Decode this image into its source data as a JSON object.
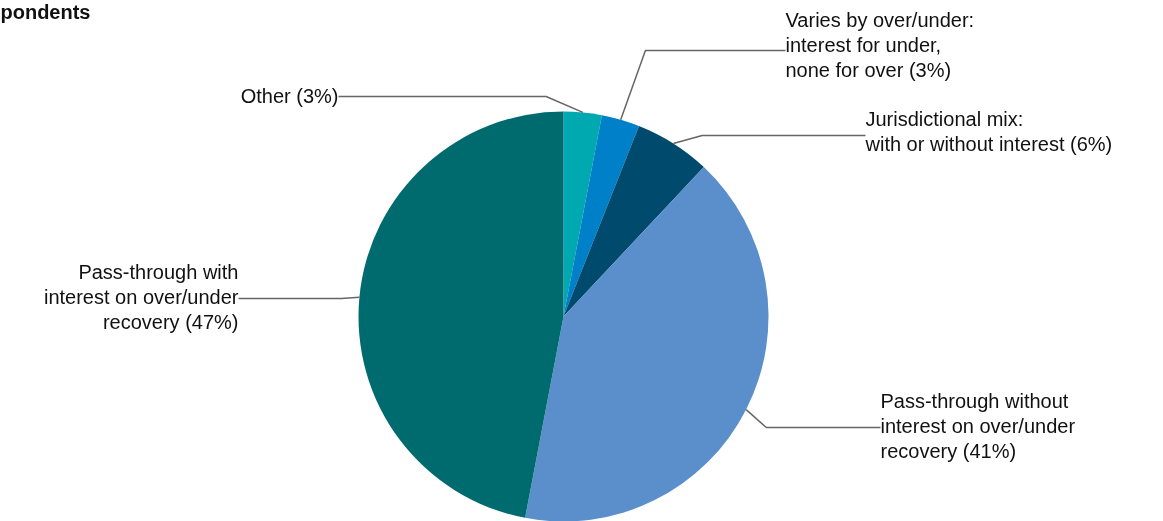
{
  "chart_data": {
    "type": "pie",
    "title": "pondents",
    "categories": [
      "Other (3%)",
      "Varies by over/under:\ninterest for under,\nnone for over (3%)",
      "Jurisdictional mix:\nwith or without interest (6%)",
      "Pass-through without\ninterest on over/under\nrecovery (41%)",
      "Pass-through with\ninterest on over/under\nrecovery (47%)"
    ],
    "values": [
      3,
      3,
      6,
      41,
      47
    ],
    "colors": [
      "#00a9b0",
      "#0080c8",
      "#004a6e",
      "#5b8fcb",
      "#006b6e"
    ]
  }
}
